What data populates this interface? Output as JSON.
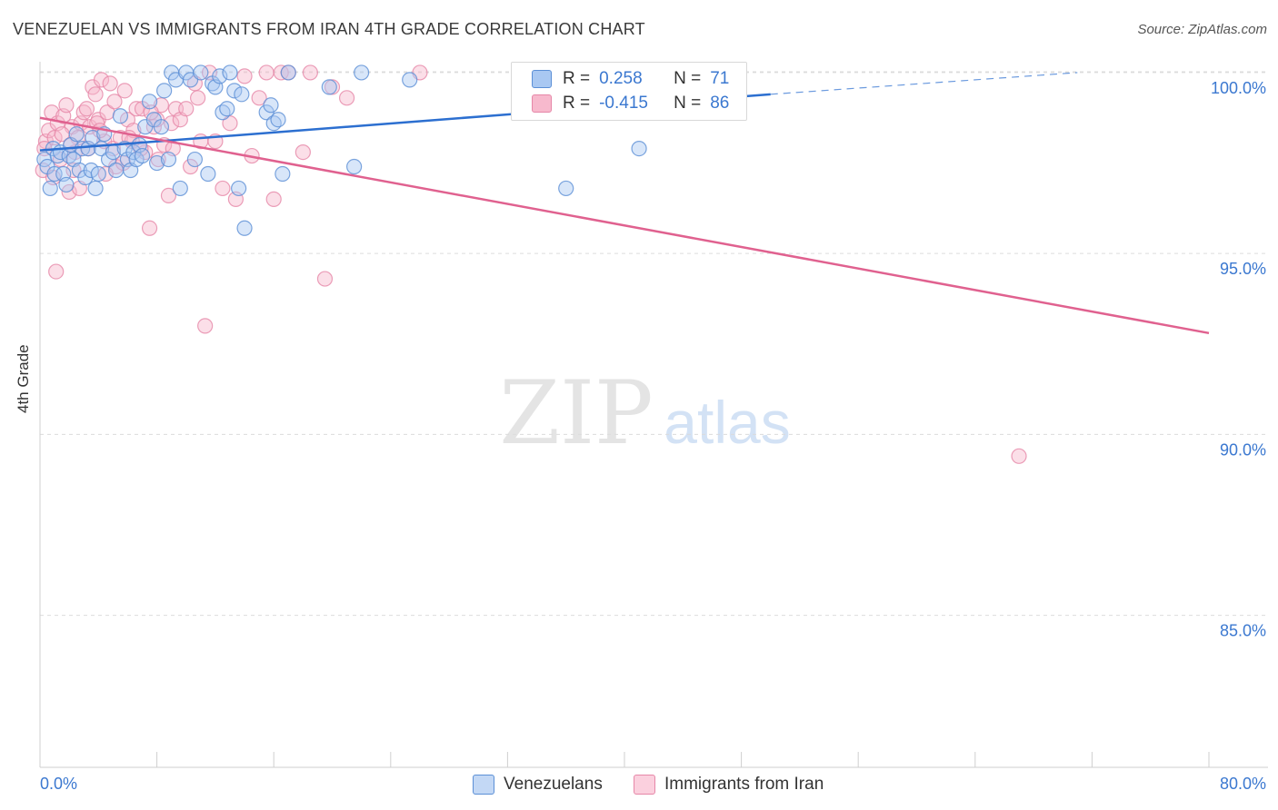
{
  "title": "VENEZUELAN VS IMMIGRANTS FROM IRAN 4TH GRADE CORRELATION CHART",
  "source": "Source: ZipAtlas.com",
  "watermark": {
    "zip": "ZIP",
    "atlas": "atlas"
  },
  "legend": {
    "rows": [
      {
        "r_label": "R =",
        "r_value": "0.258",
        "n_label": "N =",
        "n_value": "71"
      },
      {
        "r_label": "R =",
        "r_value": "-0.415",
        "n_label": "N =",
        "n_value": "86"
      }
    ]
  },
  "bottom_legend": {
    "series1": "Venezuelans",
    "series2": "Immigrants from Iran"
  },
  "colors": {
    "blue_fill": "#a9c8f2",
    "blue_stroke": "#5b8fd6",
    "blue_line": "#2c6fd0",
    "pink_fill": "#f7b9cd",
    "pink_stroke": "#e687a8",
    "pink_line": "#e0618f",
    "tick_label": "#3b78d0",
    "grid": "#dcdcdc"
  },
  "chart_data": {
    "type": "scatter",
    "title": "VENEZUELAN VS IMMIGRANTS FROM IRAN 4TH GRADE CORRELATION CHART",
    "xlabel": "",
    "ylabel": "4th Grade",
    "xlim": [
      0,
      80
    ],
    "ylim": [
      80.8,
      100.5
    ],
    "x_tick_labels": [
      "0.0%",
      "80.0%"
    ],
    "y_ticks": [
      100,
      95,
      90,
      85
    ],
    "y_tick_labels": [
      "100.0%",
      "95.0%",
      "90.0%",
      "85.0%"
    ],
    "grid": true,
    "legend_position": "top-center",
    "series": [
      {
        "name": "Venezuelans",
        "r": 0.258,
        "n": 71,
        "trend": {
          "x": [
            0,
            50
          ],
          "y": [
            97.85,
            99.4
          ],
          "dashed_extension_to": [
            71,
            100.0
          ]
        },
        "points": [
          [
            0.3,
            97.6
          ],
          [
            0.5,
            97.4
          ],
          [
            0.7,
            96.8
          ],
          [
            0.9,
            97.9
          ],
          [
            1.0,
            97.2
          ],
          [
            1.2,
            97.7
          ],
          [
            1.4,
            97.8
          ],
          [
            1.6,
            97.2
          ],
          [
            1.8,
            96.9
          ],
          [
            2.0,
            97.7
          ],
          [
            2.1,
            98.0
          ],
          [
            2.3,
            97.6
          ],
          [
            2.5,
            98.3
          ],
          [
            2.7,
            97.3
          ],
          [
            2.9,
            97.9
          ],
          [
            3.1,
            97.1
          ],
          [
            3.3,
            97.9
          ],
          [
            3.5,
            97.3
          ],
          [
            3.6,
            98.2
          ],
          [
            3.8,
            96.8
          ],
          [
            4.0,
            97.2
          ],
          [
            4.2,
            97.9
          ],
          [
            4.4,
            98.3
          ],
          [
            4.7,
            97.6
          ],
          [
            5.0,
            97.8
          ],
          [
            5.2,
            97.3
          ],
          [
            5.5,
            98.8
          ],
          [
            5.8,
            97.9
          ],
          [
            6.0,
            97.6
          ],
          [
            6.2,
            97.3
          ],
          [
            6.4,
            97.8
          ],
          [
            6.6,
            97.6
          ],
          [
            6.8,
            98.0
          ],
          [
            7.0,
            97.7
          ],
          [
            7.2,
            98.5
          ],
          [
            7.5,
            99.2
          ],
          [
            7.8,
            98.7
          ],
          [
            8.0,
            97.5
          ],
          [
            8.3,
            98.5
          ],
          [
            8.5,
            99.5
          ],
          [
            8.8,
            97.6
          ],
          [
            9.0,
            100.0
          ],
          [
            9.3,
            99.8
          ],
          [
            9.6,
            96.8
          ],
          [
            10.0,
            100.0
          ],
          [
            10.3,
            99.8
          ],
          [
            10.6,
            97.6
          ],
          [
            11.0,
            100.0
          ],
          [
            11.5,
            97.2
          ],
          [
            11.8,
            99.7
          ],
          [
            12.0,
            99.6
          ],
          [
            12.3,
            99.9
          ],
          [
            12.5,
            98.9
          ],
          [
            12.8,
            99.0
          ],
          [
            13.0,
            100.0
          ],
          [
            13.3,
            99.5
          ],
          [
            13.6,
            96.8
          ],
          [
            13.8,
            99.4
          ],
          [
            14.0,
            95.7
          ],
          [
            15.5,
            98.9
          ],
          [
            15.8,
            99.1
          ],
          [
            16.0,
            98.6
          ],
          [
            16.3,
            98.7
          ],
          [
            16.6,
            97.2
          ],
          [
            17.0,
            100.0
          ],
          [
            19.8,
            99.6
          ],
          [
            21.5,
            97.4
          ],
          [
            22.0,
            100.0
          ],
          [
            25.3,
            99.8
          ],
          [
            36.0,
            96.8
          ],
          [
            41.0,
            97.9
          ]
        ]
      },
      {
        "name": "Immigrants from Iran",
        "r": -0.415,
        "n": 86,
        "trend": {
          "x": [
            0,
            80
          ],
          "y": [
            98.75,
            92.8
          ]
        },
        "points": [
          [
            0.2,
            97.3
          ],
          [
            0.4,
            98.1
          ],
          [
            0.6,
            98.4
          ],
          [
            0.8,
            98.9
          ],
          [
            1.0,
            98.2
          ],
          [
            1.2,
            98.6
          ],
          [
            1.4,
            97.6
          ],
          [
            1.6,
            98.8
          ],
          [
            1.8,
            99.1
          ],
          [
            2.0,
            96.7
          ],
          [
            2.2,
            98.5
          ],
          [
            2.4,
            97.8
          ],
          [
            2.6,
            98.2
          ],
          [
            2.8,
            98.6
          ],
          [
            3.0,
            98.9
          ],
          [
            3.2,
            99.0
          ],
          [
            3.4,
            98.5
          ],
          [
            3.6,
            99.6
          ],
          [
            3.8,
            99.4
          ],
          [
            4.0,
            98.7
          ],
          [
            4.2,
            99.8
          ],
          [
            4.4,
            98.1
          ],
          [
            4.6,
            98.9
          ],
          [
            4.8,
            99.7
          ],
          [
            5.0,
            97.9
          ],
          [
            5.2,
            97.4
          ],
          [
            5.5,
            98.2
          ],
          [
            5.8,
            99.5
          ],
          [
            6.0,
            98.7
          ],
          [
            6.3,
            98.1
          ],
          [
            6.6,
            99.0
          ],
          [
            7.0,
            99.0
          ],
          [
            7.2,
            97.8
          ],
          [
            7.5,
            95.7
          ],
          [
            7.8,
            98.5
          ],
          [
            8.0,
            98.7
          ],
          [
            8.3,
            99.1
          ],
          [
            8.5,
            98.0
          ],
          [
            8.8,
            96.6
          ],
          [
            9.0,
            98.6
          ],
          [
            9.3,
            99.0
          ],
          [
            9.6,
            98.7
          ],
          [
            10.0,
            99.0
          ],
          [
            10.3,
            97.4
          ],
          [
            10.6,
            99.7
          ],
          [
            11.0,
            98.1
          ],
          [
            11.3,
            93.0
          ],
          [
            11.6,
            100.0
          ],
          [
            12.0,
            98.1
          ],
          [
            12.5,
            96.8
          ],
          [
            13.0,
            98.6
          ],
          [
            13.4,
            96.5
          ],
          [
            14.0,
            99.9
          ],
          [
            14.5,
            97.7
          ],
          [
            15.0,
            99.3
          ],
          [
            15.5,
            100.0
          ],
          [
            16.0,
            96.5
          ],
          [
            16.5,
            100.0
          ],
          [
            17.0,
            100.0
          ],
          [
            18.0,
            97.8
          ],
          [
            18.5,
            100.0
          ],
          [
            19.5,
            94.3
          ],
          [
            20.0,
            99.6
          ],
          [
            21.0,
            99.3
          ],
          [
            26.0,
            100.0
          ],
          [
            67.0,
            89.4
          ],
          [
            0.3,
            97.9
          ],
          [
            0.9,
            97.1
          ],
          [
            1.5,
            98.3
          ],
          [
            2.1,
            98.0
          ],
          [
            2.7,
            96.8
          ],
          [
            3.3,
            97.9
          ],
          [
            3.9,
            98.6
          ],
          [
            4.5,
            97.2
          ],
          [
            5.1,
            99.2
          ],
          [
            5.7,
            97.5
          ],
          [
            6.4,
            98.4
          ],
          [
            6.9,
            97.9
          ],
          [
            7.6,
            98.9
          ],
          [
            8.1,
            97.6
          ],
          [
            9.1,
            97.9
          ],
          [
            1.1,
            94.5
          ],
          [
            2.3,
            97.3
          ],
          [
            4.1,
            98.4
          ],
          [
            6.1,
            98.2
          ],
          [
            10.8,
            99.3
          ]
        ]
      }
    ]
  }
}
